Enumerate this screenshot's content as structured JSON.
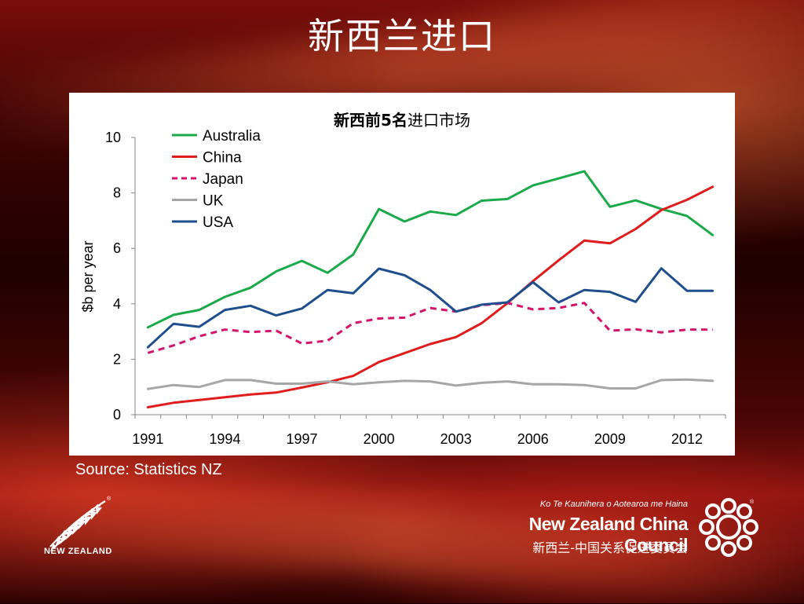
{
  "slide": {
    "title": "新西兰进口",
    "source": "Source: Statistics NZ"
  },
  "branding": {
    "nz_wordmark": "NEW ZEALAND",
    "council_maori": "Ko Te Kaunihera o Aotearoa me Haina",
    "council_name": "New Zealand China Council",
    "council_cn": "新西兰-中国关系促进委员会",
    "registered_mark": "®"
  },
  "chart_data": {
    "type": "line",
    "title_parts": [
      "新西前",
      "5",
      "名",
      "进口市场"
    ],
    "title": "新西前5名进口市场",
    "ylabel": "$b per year",
    "xlabel": "",
    "ylim": [
      0,
      10
    ],
    "yticks": [
      "0",
      "2",
      "4",
      "6",
      "8",
      "10"
    ],
    "x": [
      1991,
      1992,
      1993,
      1994,
      1995,
      1996,
      1997,
      1998,
      1999,
      2000,
      2001,
      2002,
      2003,
      2004,
      2005,
      2006,
      2007,
      2008,
      2009,
      2010,
      2011,
      2012,
      2013
    ],
    "xtick_labels": [
      "1991",
      "1994",
      "1997",
      "2000",
      "2003",
      "2006",
      "2009",
      "2012"
    ],
    "xtick_years": [
      1991,
      1994,
      1997,
      2000,
      2003,
      2006,
      2009,
      2012
    ],
    "grid": false,
    "legend_position": "top-left",
    "series": [
      {
        "name": "Australia",
        "color": "#1aaa4a",
        "dash": false,
        "values": [
          3.15,
          3.6,
          3.78,
          4.25,
          4.58,
          5.17,
          5.55,
          5.12,
          5.78,
          7.42,
          6.97,
          7.33,
          7.2,
          7.72,
          7.78,
          8.27,
          8.52,
          8.78,
          7.5,
          7.73,
          7.42,
          7.17,
          6.48
        ]
      },
      {
        "name": "China",
        "color": "#e01c1c",
        "dash": false,
        "values": [
          0.27,
          0.43,
          0.53,
          0.63,
          0.73,
          0.8,
          0.98,
          1.17,
          1.4,
          1.9,
          2.22,
          2.55,
          2.8,
          3.3,
          4.02,
          4.82,
          5.57,
          6.28,
          6.18,
          6.7,
          7.38,
          7.75,
          8.22
        ]
      },
      {
        "name": "Japan",
        "color": "#d4146a",
        "dash": true,
        "values": [
          2.23,
          2.5,
          2.83,
          3.07,
          2.98,
          3.03,
          2.57,
          2.67,
          3.3,
          3.47,
          3.5,
          3.85,
          3.72,
          3.95,
          4.03,
          3.8,
          3.85,
          4.03,
          3.03,
          3.08,
          2.97,
          3.07,
          3.07
        ]
      },
      {
        "name": "UK",
        "color": "#a6a6a6",
        "dash": false,
        "values": [
          0.93,
          1.07,
          1.0,
          1.25,
          1.25,
          1.12,
          1.12,
          1.2,
          1.1,
          1.17,
          1.22,
          1.2,
          1.05,
          1.15,
          1.2,
          1.1,
          1.1,
          1.07,
          0.95,
          0.95,
          1.25,
          1.27,
          1.22
        ]
      },
      {
        "name": "USA",
        "color": "#1f4e8c",
        "dash": false,
        "values": [
          2.43,
          3.28,
          3.17,
          3.78,
          3.93,
          3.58,
          3.83,
          4.5,
          4.38,
          5.27,
          5.03,
          4.5,
          3.72,
          3.97,
          4.05,
          4.78,
          4.05,
          4.5,
          4.43,
          4.07,
          5.28,
          4.47,
          4.47
        ]
      }
    ]
  }
}
